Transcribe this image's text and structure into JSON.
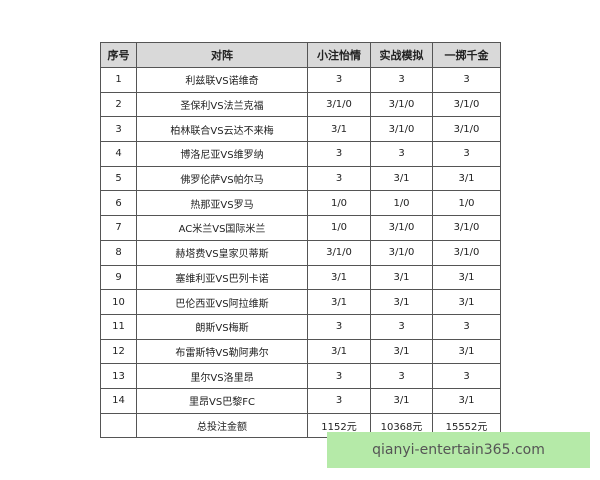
{
  "table": {
    "header": [
      "序号",
      "对阵",
      "小注怡情",
      "实战模拟",
      "一掷千金"
    ],
    "rows": [
      [
        "1",
        "利兹联VS诺维奇",
        "3",
        "3",
        "3"
      ],
      [
        "2",
        "圣保利VS法兰克福",
        "3/1/0",
        "3/1/0",
        "3/1/0"
      ],
      [
        "3",
        "柏林联合VS云达不来梅",
        "3/1",
        "3/1/0",
        "3/1/0"
      ],
      [
        "4",
        "博洛尼亚VS维罗纳",
        "3",
        "3",
        "3"
      ],
      [
        "5",
        "佛罗伦萨VS帕尔马",
        "3",
        "3/1",
        "3/1"
      ],
      [
        "6",
        "热那亚VS罗马",
        "1/0",
        "1/0",
        "1/0"
      ],
      [
        "7",
        "AC米兰VS国际米兰",
        "1/0",
        "3/1/0",
        "3/1/0"
      ],
      [
        "8",
        "赫塔费VS皇家贝蒂斯",
        "3/1/0",
        "3/1/0",
        "3/1/0"
      ],
      [
        "9",
        "塞维利亚VS巴列卡诺",
        "3/1",
        "3/1",
        "3/1"
      ],
      [
        "10",
        "巴伦西亚VS阿拉维斯",
        "3/1",
        "3/1",
        "3/1"
      ],
      [
        "11",
        "朗斯VS梅斯",
        "3",
        "3",
        "3"
      ],
      [
        "12",
        "布雷斯特VS勒阿弗尔",
        "3/1",
        "3/1",
        "3/1"
      ],
      [
        "13",
        "里尔VS洛里昂",
        "3",
        "3",
        "3"
      ],
      [
        "14",
        "里昂VS巴黎FC",
        "3",
        "3/1",
        "3/1"
      ]
    ],
    "total": {
      "label": "总投注金额",
      "values": [
        "1152元",
        "10368元",
        "15552元"
      ]
    }
  },
  "watermark": "qianyi-entertain365.com"
}
